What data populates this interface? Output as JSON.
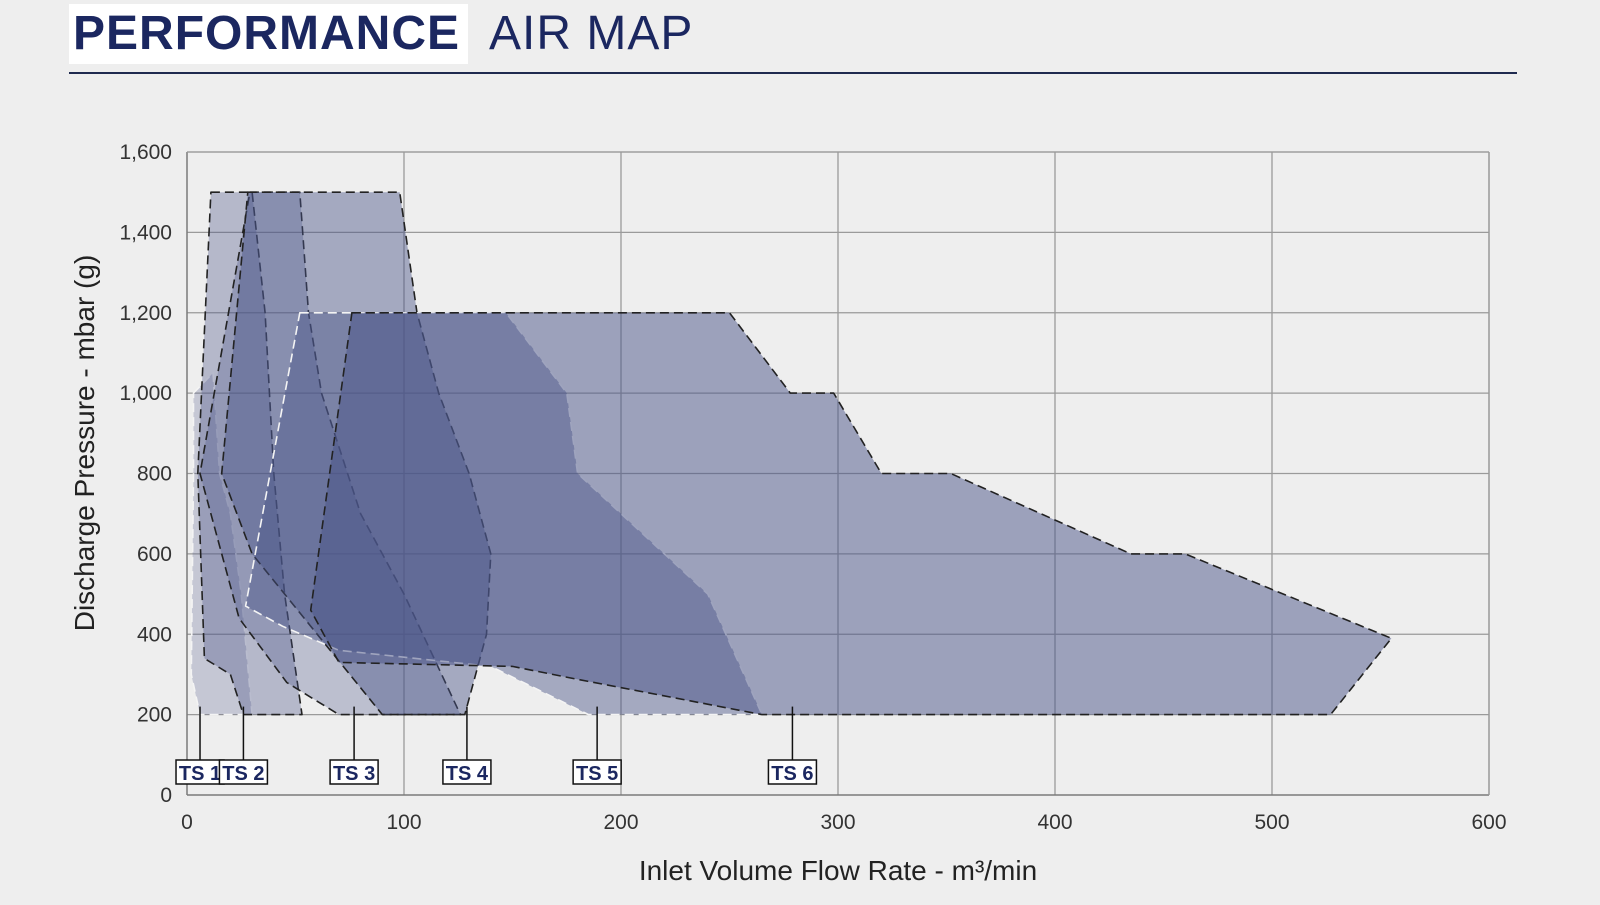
{
  "header": {
    "title_bold": "PERFORMANCE",
    "title_light": "AIR MAP"
  },
  "chart_data": {
    "type": "area",
    "title": "PERFORMANCE AIR MAP",
    "xlabel": "Inlet Volume Flow Rate - m³/min",
    "ylabel": "Discharge Pressure - mbar (g)",
    "xlim": [
      0,
      600
    ],
    "ylim": [
      0,
      1600
    ],
    "x_ticks": [
      0,
      100,
      200,
      300,
      400,
      500,
      600
    ],
    "x_tick_labels": [
      "0",
      "100",
      "200",
      "300",
      "400",
      "500",
      "600"
    ],
    "y_ticks": [
      0,
      200,
      400,
      600,
      800,
      1000,
      1200,
      1400,
      1600
    ],
    "y_tick_labels": [
      "0",
      "200",
      "400",
      "600",
      "800",
      "1,000",
      "1,200",
      "1,400",
      "1,600"
    ],
    "grid": true,
    "colors": {
      "fill": "#4a5488",
      "grid": "#9a9a9a",
      "axis": "#7a7a7a",
      "border_dark": "#222222",
      "border_light": "#f4f4f4",
      "ts_text": "#1b2760"
    },
    "series": [
      {
        "name": "TS 1",
        "label_x": 6,
        "fill_opacity": 0.25,
        "border": "light",
        "points": [
          [
            3,
            1000
          ],
          [
            12,
            1050
          ],
          [
            15,
            800
          ],
          [
            20,
            700
          ],
          [
            25,
            500
          ],
          [
            30,
            200
          ],
          [
            6,
            200
          ],
          [
            2,
            300
          ],
          [
            3,
            800
          ]
        ]
      },
      {
        "name": "TS 2",
        "label_x": 26,
        "fill_opacity": 0.35,
        "border": "dark",
        "points": [
          [
            11,
            1500
          ],
          [
            30,
            1500
          ],
          [
            36,
            1200
          ],
          [
            40,
            800
          ],
          [
            45,
            500
          ],
          [
            53,
            200
          ],
          [
            26,
            200
          ],
          [
            20,
            300
          ],
          [
            8,
            340
          ],
          [
            5,
            800
          ]
        ]
      },
      {
        "name": "TS 3",
        "label_x": 77,
        "fill_opacity": 0.3,
        "border": "dark",
        "points": [
          [
            29,
            1500
          ],
          [
            52,
            1500
          ],
          [
            56,
            1200
          ],
          [
            62,
            1000
          ],
          [
            80,
            700
          ],
          [
            100,
            500
          ],
          [
            126,
            200
          ],
          [
            70,
            200
          ],
          [
            46,
            280
          ],
          [
            24,
            440
          ],
          [
            6,
            800
          ]
        ]
      },
      {
        "name": "TS 4",
        "label_x": 129,
        "fill_opacity": 0.45,
        "border": "dark",
        "points": [
          [
            28,
            1500
          ],
          [
            98,
            1500
          ],
          [
            106,
            1200
          ],
          [
            116,
            1000
          ],
          [
            130,
            800
          ],
          [
            140,
            600
          ],
          [
            138,
            400
          ],
          [
            128,
            200
          ],
          [
            90,
            200
          ],
          [
            60,
            400
          ],
          [
            30,
            600
          ],
          [
            16,
            800
          ]
        ]
      },
      {
        "name": "TS 5",
        "label_x": 189,
        "fill_opacity": 0.45,
        "border": "light",
        "points": [
          [
            52,
            1200
          ],
          [
            147,
            1200
          ],
          [
            175,
            1000
          ],
          [
            180,
            800
          ],
          [
            210,
            650
          ],
          [
            240,
            500
          ],
          [
            265,
            200
          ],
          [
            185,
            200
          ],
          [
            140,
            320
          ],
          [
            70,
            360
          ],
          [
            44,
            420
          ],
          [
            27,
            470
          ]
        ]
      },
      {
        "name": "TS 6",
        "label_x": 279,
        "fill_opacity": 0.5,
        "border": "dark",
        "points": [
          [
            76,
            1200
          ],
          [
            250,
            1200
          ],
          [
            278,
            1000
          ],
          [
            298,
            1000
          ],
          [
            320,
            800
          ],
          [
            352,
            800
          ],
          [
            435,
            600
          ],
          [
            460,
            600
          ],
          [
            555,
            390
          ],
          [
            527,
            200
          ],
          [
            280,
            200
          ],
          [
            265,
            200
          ],
          [
            178,
            290
          ],
          [
            150,
            320
          ],
          [
            70,
            330
          ],
          [
            57,
            460
          ]
        ]
      }
    ]
  }
}
